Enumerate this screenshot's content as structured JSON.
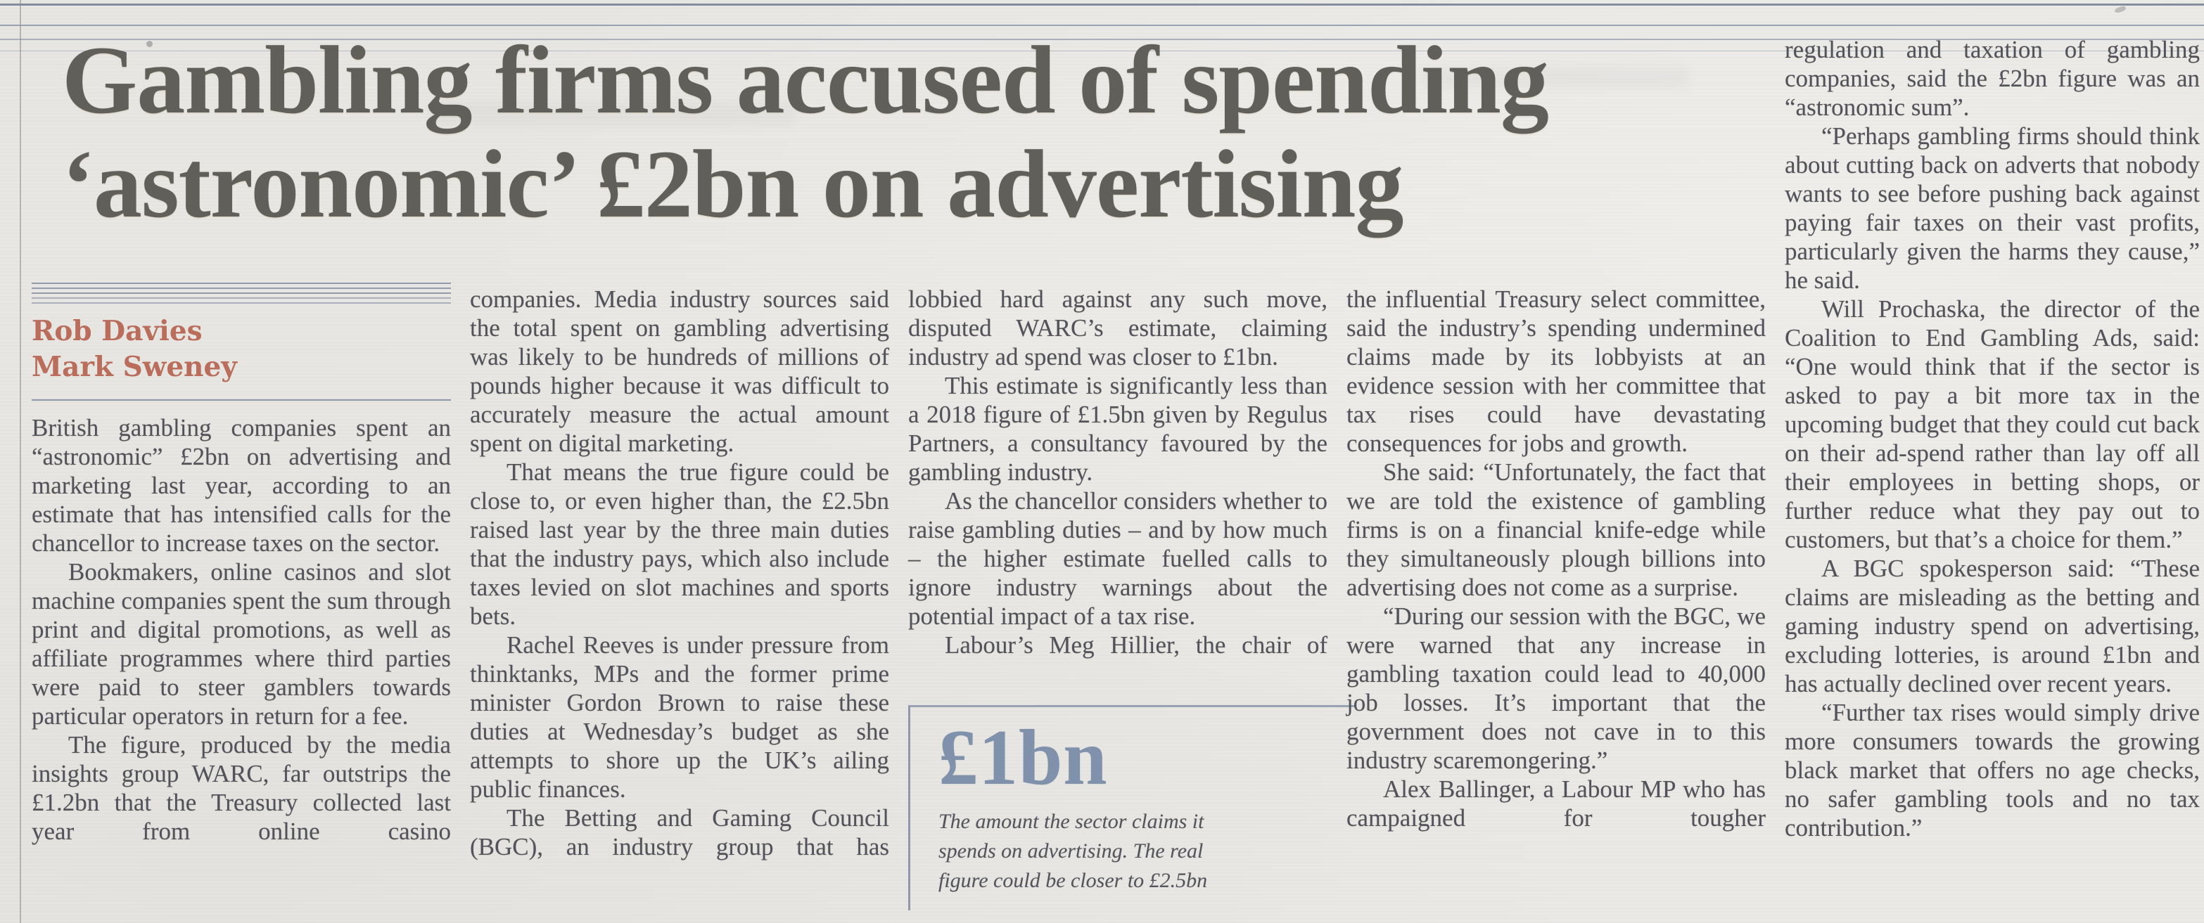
{
  "headline": {
    "line1": "Gambling firms accused of spending",
    "line2": "‘astronomic’ £2bn on advertising"
  },
  "byline": {
    "authors": [
      "Rob Davies",
      "Mark Sweney"
    ]
  },
  "columns": {
    "col1": {
      "paragraphs": [
        "British gambling companies spent an “astronomic” £2bn on advertising and marketing last year, according to an estimate that has intensified calls for the chancellor to increase taxes on the sector.",
        "Bookmakers, online casinos and slot machine companies spent the sum through print and digital promotions, as well as affiliate programmes where third parties were paid to steer gamblers towards particular operators in return for a fee.",
        "The figure, produced by the media insights group WARC, far outstrips the £1.2bn that the Treasury collected last year from online casino"
      ]
    },
    "col2": {
      "paragraphs": [
        "companies. Media industry sources said the total spent on gambling advertising was likely to be hundreds of millions of pounds higher because it was difficult to accurately measure the actual amount spent on digital marketing.",
        "That means the true figure could be close to, or even higher than, the £2.5bn raised last year by the three main duties that the industry pays, which also include taxes levied on slot machines and sports bets.",
        "Rachel Reeves is under pressure from thinktanks, MPs and the former prime minister Gordon Brown to raise these duties at Wednesday’s budget as she attempts to shore up the UK’s ailing public finances.",
        "The Betting and Gaming Council (BGC), an industry group that has"
      ]
    },
    "col3": {
      "paragraphs": [
        "lobbied hard against any such move, disputed WARC’s estimate, claiming industry ad spend was closer to £1bn.",
        "This estimate is significantly less than a 2018 figure of £1.5bn given by Regulus Partners, a consultancy favoured by the gambling industry.",
        "As the chancellor considers whether to raise gambling duties – and by how much – the higher estimate fuelled calls to ignore industry warnings about the potential impact of a tax rise.",
        "Labour’s Meg Hillier, the chair of"
      ]
    },
    "col4": {
      "paragraphs": [
        "the influential Treasury select committee, said the industry’s spending undermined claims made by its lobbyists at an evidence session with her committee that tax rises could have devastating consequences for jobs and growth.",
        "She said: “Unfortunately, the fact that we are told the existence of gambling firms is on a financial knife-edge while they simultaneously plough billions into advertising does not come as a surprise.",
        "“During our session with the BGC, we were warned that any increase in gambling taxation could lead to 40,000 job losses. It’s important that the government does not cave in to this industry scaremongering.”",
        "Alex Ballinger, a Labour MP who has campaigned for tougher"
      ]
    },
    "col5": {
      "paragraphs": [
        "regulation and taxation of gambling companies, said the £2bn figure was an “astronomic sum”.",
        "“Perhaps gambling firms should think about cutting back on adverts that nobody wants to see before pushing back against paying fair taxes on their vast profits, particularly given the harms they cause,” he said.",
        "Will Prochaska, the director of the Coalition to End Gambling Ads, said: “One would think that if the sector is asked to pay a bit more tax in the upcoming budget that they could cut back on their ad-spend rather than lay off all their employees in betting shops, or further reduce what they pay out to customers, but that’s a choice for them.”",
        "A BGC spokesperson said: “These claims are misleading as the betting and gaming industry spend on advertising, excluding lotteries, is around £1bn and has actually declined over recent years.",
        "“Further tax rises would simply drive more consumers towards the growing black market that offers no age checks, no safer gambling tools and no tax contribution.”"
      ]
    }
  },
  "pullquote": {
    "figure": "£1bn",
    "caption": "The amount the sector claims it spends on advertising. The real figure could be closer to £2.5bn"
  },
  "colors": {
    "paper": "#eae8e4",
    "headline_text": "#615f5a",
    "body_text": "#52535a",
    "byline_accent": "#b96d5a",
    "rule_blue_grey": "#7e88a0",
    "pullquote_figure": "#7f91ab"
  }
}
